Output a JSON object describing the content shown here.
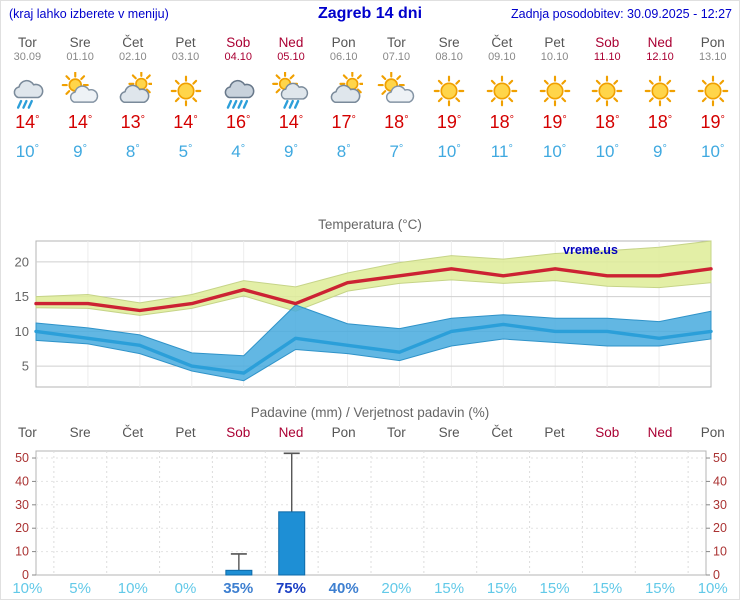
{
  "colors": {
    "header_blue": "#0000cc",
    "weekend": "#aa0033",
    "high": "#d40000",
    "low": "#3fa9e0",
    "title_gray": "#666666",
    "axis_red": "#aa3333",
    "bar_blue": "#1e8fd5"
  },
  "header": {
    "note": "(kraj lahko izberete v meniju)",
    "title": "Zagreb 14 dni",
    "updated": "Zadnja posodobitev: 30.09.2025 - 12:27"
  },
  "watermark": "vreme.us",
  "forecast": {
    "days": [
      {
        "name": "Tor",
        "date": "30.09",
        "weekend": false,
        "icon": "rain-cloud-icon",
        "high": "14°",
        "low": "10°"
      },
      {
        "name": "Sre",
        "date": "01.10",
        "weekend": false,
        "icon": "partly-sunny-icon",
        "high": "14°",
        "low": "9°"
      },
      {
        "name": "Čet",
        "date": "02.10",
        "weekend": false,
        "icon": "mostly-cloudy-icon",
        "high": "13°",
        "low": "8°"
      },
      {
        "name": "Pet",
        "date": "03.10",
        "weekend": false,
        "icon": "sunny-icon",
        "high": "14°",
        "low": "5°"
      },
      {
        "name": "Sob",
        "date": "04.10",
        "weekend": true,
        "icon": "heavy-rain-icon",
        "high": "16°",
        "low": "4°"
      },
      {
        "name": "Ned",
        "date": "05.10",
        "weekend": true,
        "icon": "sun-showers-icon",
        "high": "14°",
        "low": "9°"
      },
      {
        "name": "Pon",
        "date": "06.10",
        "weekend": false,
        "icon": "mostly-cloudy-icon",
        "high": "17°",
        "low": "8°"
      },
      {
        "name": "Tor",
        "date": "07.10",
        "weekend": false,
        "icon": "partly-sunny-icon",
        "high": "18°",
        "low": "7°"
      },
      {
        "name": "Sre",
        "date": "08.10",
        "weekend": false,
        "icon": "sunny-icon",
        "high": "19°",
        "low": "10°"
      },
      {
        "name": "Čet",
        "date": "09.10",
        "weekend": false,
        "icon": "sunny-icon",
        "high": "18°",
        "low": "11°"
      },
      {
        "name": "Pet",
        "date": "10.10",
        "weekend": false,
        "icon": "sunny-icon",
        "high": "19°",
        "low": "10°"
      },
      {
        "name": "Sob",
        "date": "11.10",
        "weekend": true,
        "icon": "sunny-icon",
        "high": "18°",
        "low": "10°"
      },
      {
        "name": "Ned",
        "date": "12.10",
        "weekend": true,
        "icon": "sunny-icon",
        "high": "18°",
        "low": "9°"
      },
      {
        "name": "Pon",
        "date": "13.10",
        "weekend": false,
        "icon": "sunny-icon",
        "high": "19°",
        "low": "10°"
      }
    ]
  },
  "chart_data": [
    {
      "type": "line",
      "title": "Temperatura (°C)",
      "categories": [
        "Tor",
        "Sre",
        "Čet",
        "Pet",
        "Sob",
        "Ned",
        "Pon",
        "Tor",
        "Sre",
        "Čet",
        "Pet",
        "Sob",
        "Ned",
        "Pon"
      ],
      "ylim": [
        2,
        23
      ],
      "yticks": [
        5,
        10,
        15,
        20
      ],
      "grid": true,
      "legend_position": "none",
      "series": [
        {
          "name": "Max temperatura",
          "color": "#cc2233",
          "values": [
            14,
            14,
            13,
            14,
            16,
            14,
            17,
            18,
            19,
            18,
            19,
            18,
            18,
            19
          ]
        },
        {
          "name": "Min temperatura",
          "color": "#2b9fd9",
          "values": [
            10,
            9,
            8,
            5,
            4,
            9,
            8,
            7,
            10,
            11,
            10,
            10,
            9,
            10
          ]
        }
      ],
      "bands": [
        {
          "name": "max range",
          "fill": "rgba(222,236,150,0.85)",
          "stroke": "#c6d488",
          "upper": [
            15,
            15.3,
            14.1,
            15.3,
            17.3,
            16.4,
            18.4,
            19.9,
            20.9,
            20.4,
            21.2,
            21.6,
            22.1,
            23
          ],
          "lower": [
            13.4,
            13.3,
            12.3,
            13.3,
            15.1,
            12.9,
            15.8,
            16.9,
            17.4,
            16.9,
            17.3,
            16.5,
            16.3,
            17
          ]
        },
        {
          "name": "min range",
          "fill": "rgba(70,170,222,0.85)",
          "stroke": "#2f93c9",
          "upper": [
            11.2,
            10.5,
            9.5,
            6.9,
            6.5,
            13.8,
            11.1,
            10.4,
            11.9,
            12.4,
            11.9,
            11.9,
            11.4,
            12.9
          ],
          "lower": [
            8.7,
            8.2,
            6.8,
            4.3,
            2.9,
            7.4,
            6.8,
            5.8,
            7.9,
            8.9,
            8.4,
            7.9,
            7.9,
            8.9
          ]
        }
      ]
    },
    {
      "type": "bar",
      "title": "Padavine (mm) / Verjetnost padavin (%)",
      "categories": [
        "Tor",
        "Sre",
        "Čet",
        "Pet",
        "Sob",
        "Ned",
        "Pon",
        "Tor",
        "Sre",
        "Čet",
        "Pet",
        "Sob",
        "Ned",
        "Pon"
      ],
      "weekend": [
        false,
        false,
        false,
        false,
        true,
        true,
        false,
        false,
        false,
        false,
        false,
        true,
        true,
        false
      ],
      "values_mm": [
        0,
        0,
        0,
        0,
        2,
        27,
        0,
        0,
        0,
        0,
        0,
        0,
        0,
        0
      ],
      "whisker_max_mm": [
        0,
        0,
        0,
        0,
        9,
        52,
        0,
        0,
        0,
        0,
        0,
        0,
        0,
        0
      ],
      "ylim": [
        0,
        53
      ],
      "yticks": [
        0,
        10,
        20,
        30,
        40,
        50
      ],
      "probabilities": [
        {
          "label": "10%",
          "color": "#62c9e8",
          "bold": false
        },
        {
          "label": "5%",
          "color": "#62c9e8",
          "bold": false
        },
        {
          "label": "10%",
          "color": "#62c9e8",
          "bold": false
        },
        {
          "label": "0%",
          "color": "#62c9e8",
          "bold": false
        },
        {
          "label": "35%",
          "color": "#3d7fd0",
          "bold": true
        },
        {
          "label": "75%",
          "color": "#1b3fc4",
          "bold": true
        },
        {
          "label": "40%",
          "color": "#3d7fd0",
          "bold": true
        },
        {
          "label": "20%",
          "color": "#62c9e8",
          "bold": false
        },
        {
          "label": "15%",
          "color": "#62c9e8",
          "bold": false
        },
        {
          "label": "15%",
          "color": "#62c9e8",
          "bold": false
        },
        {
          "label": "15%",
          "color": "#62c9e8",
          "bold": false
        },
        {
          "label": "15%",
          "color": "#62c9e8",
          "bold": false
        },
        {
          "label": "15%",
          "color": "#62c9e8",
          "bold": false
        },
        {
          "label": "10%",
          "color": "#62c9e8",
          "bold": false
        }
      ]
    }
  ]
}
